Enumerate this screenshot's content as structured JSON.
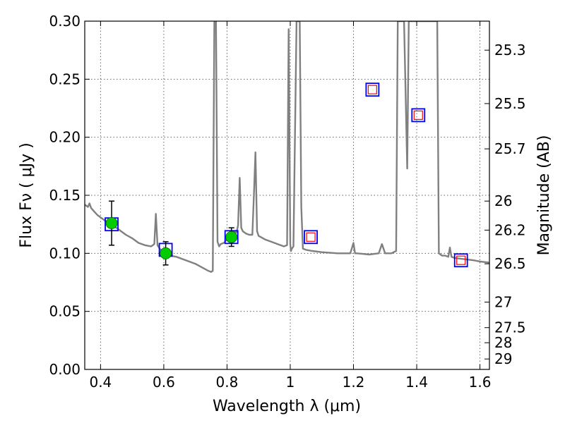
{
  "chart_data": {
    "type": "line",
    "title": "",
    "xlabel": "Wavelength  λ (μm)",
    "ylabel": "Flux  Fν  ( μJy )",
    "y2label": "Magnitude (AB)",
    "xlim": [
      0.35,
      1.63
    ],
    "ylim": [
      0.0,
      0.3
    ],
    "grid": true,
    "x_ticks": [
      0.4,
      0.6,
      0.8,
      1.0,
      1.2,
      1.4,
      1.6
    ],
    "x_tick_labels": [
      "0.4",
      "0.6",
      "0.8",
      "1",
      "1.2",
      "1.4",
      "1.6"
    ],
    "y_ticks": [
      0.0,
      0.05,
      0.1,
      0.15,
      0.2,
      0.25,
      0.3
    ],
    "y_tick_labels": [
      "0.00",
      "0.05",
      "0.10",
      "0.15",
      "0.20",
      "0.25",
      "0.30"
    ],
    "mag_ticks": [
      {
        "label": "25.3",
        "flux": 0.275
      },
      {
        "label": "25.5",
        "flux": 0.229
      },
      {
        "label": "25.7",
        "flux": 0.19
      },
      {
        "label": "26",
        "flux": 0.145
      },
      {
        "label": "26.2",
        "flux": 0.12
      },
      {
        "label": "26.5",
        "flux": 0.091
      },
      {
        "label": "27",
        "flux": 0.058
      },
      {
        "label": "27.5",
        "flux": 0.036
      },
      {
        "label": "28",
        "flux": 0.023
      },
      {
        "label": "29",
        "flux": 0.009
      }
    ],
    "colors": {
      "sed": "#808080",
      "observed": "#00cc00",
      "model_box": "#0000ff",
      "predicted": "#ff0000"
    },
    "series": [
      {
        "kind": "sed-model-line",
        "x": [
          0.35,
          0.36,
          0.365,
          0.37,
          0.38,
          0.39,
          0.4,
          0.42,
          0.44,
          0.46,
          0.48,
          0.5,
          0.52,
          0.54,
          0.56,
          0.57,
          0.575,
          0.58,
          0.59,
          0.6,
          0.62,
          0.64,
          0.66,
          0.68,
          0.7,
          0.72,
          0.74,
          0.75,
          0.755,
          0.76,
          0.762,
          0.765,
          0.77,
          0.775,
          0.78,
          0.79,
          0.8,
          0.81,
          0.82,
          0.83,
          0.835,
          0.84,
          0.845,
          0.85,
          0.86,
          0.87,
          0.88,
          0.885,
          0.89,
          0.895,
          0.9,
          0.92,
          0.94,
          0.96,
          0.98,
          0.99,
          0.995,
          1.0,
          1.002,
          1.005,
          1.01,
          1.02,
          1.025,
          1.03,
          1.035,
          1.04,
          1.05,
          1.07,
          1.1,
          1.15,
          1.19,
          1.2,
          1.205,
          1.21,
          1.25,
          1.28,
          1.29,
          1.3,
          1.32,
          1.335,
          1.34,
          1.35,
          1.36,
          1.37,
          1.375,
          1.38,
          1.39,
          1.4,
          1.41,
          1.42,
          1.43,
          1.44,
          1.45,
          1.46,
          1.465,
          1.47,
          1.48,
          1.49,
          1.5,
          1.505,
          1.51,
          1.52,
          1.55,
          1.58,
          1.6,
          1.63
        ],
        "y": [
          0.142,
          0.14,
          0.143,
          0.139,
          0.136,
          0.133,
          0.131,
          0.127,
          0.124,
          0.12,
          0.116,
          0.113,
          0.109,
          0.107,
          0.106,
          0.108,
          0.134,
          0.107,
          0.103,
          0.101,
          0.098,
          0.097,
          0.095,
          0.093,
          0.091,
          0.088,
          0.085,
          0.084,
          0.085,
          0.3,
          0.3,
          0.3,
          0.11,
          0.106,
          0.108,
          0.109,
          0.112,
          0.116,
          0.119,
          0.118,
          0.124,
          0.165,
          0.122,
          0.119,
          0.117,
          0.116,
          0.116,
          0.15,
          0.187,
          0.119,
          0.115,
          0.112,
          0.11,
          0.108,
          0.106,
          0.107,
          0.293,
          0.108,
          0.102,
          0.104,
          0.106,
          0.3,
          0.3,
          0.3,
          0.14,
          0.104,
          0.103,
          0.102,
          0.101,
          0.1,
          0.1,
          0.109,
          0.1,
          0.1,
          0.099,
          0.1,
          0.108,
          0.1,
          0.1,
          0.102,
          0.3,
          0.3,
          0.3,
          0.173,
          0.3,
          0.3,
          0.3,
          0.3,
          0.3,
          0.3,
          0.3,
          0.3,
          0.3,
          0.3,
          0.3,
          0.1,
          0.098,
          0.098,
          0.097,
          0.105,
          0.097,
          0.096,
          0.095,
          0.094,
          0.093,
          0.092
        ]
      },
      {
        "kind": "observed-photometry",
        "points": [
          {
            "x": 0.435,
            "y": 0.126,
            "err": 0.019
          },
          {
            "x": 0.606,
            "y": 0.1,
            "err": 0.01
          },
          {
            "x": 0.814,
            "y": 0.114,
            "err": 0.008
          }
        ]
      },
      {
        "kind": "model-bandpass-boxes",
        "points": [
          {
            "x": 0.435,
            "y": 0.125
          },
          {
            "x": 0.606,
            "y": 0.103
          },
          {
            "x": 0.814,
            "y": 0.114
          },
          {
            "x": 1.065,
            "y": 0.114
          },
          {
            "x": 1.26,
            "y": 0.241
          },
          {
            "x": 1.405,
            "y": 0.219
          },
          {
            "x": 1.54,
            "y": 0.094
          }
        ]
      },
      {
        "kind": "predicted-photometry",
        "points": [
          {
            "x": 1.065,
            "y": 0.114
          },
          {
            "x": 1.26,
            "y": 0.241
          },
          {
            "x": 1.405,
            "y": 0.219
          },
          {
            "x": 1.54,
            "y": 0.094
          }
        ]
      }
    ]
  }
}
